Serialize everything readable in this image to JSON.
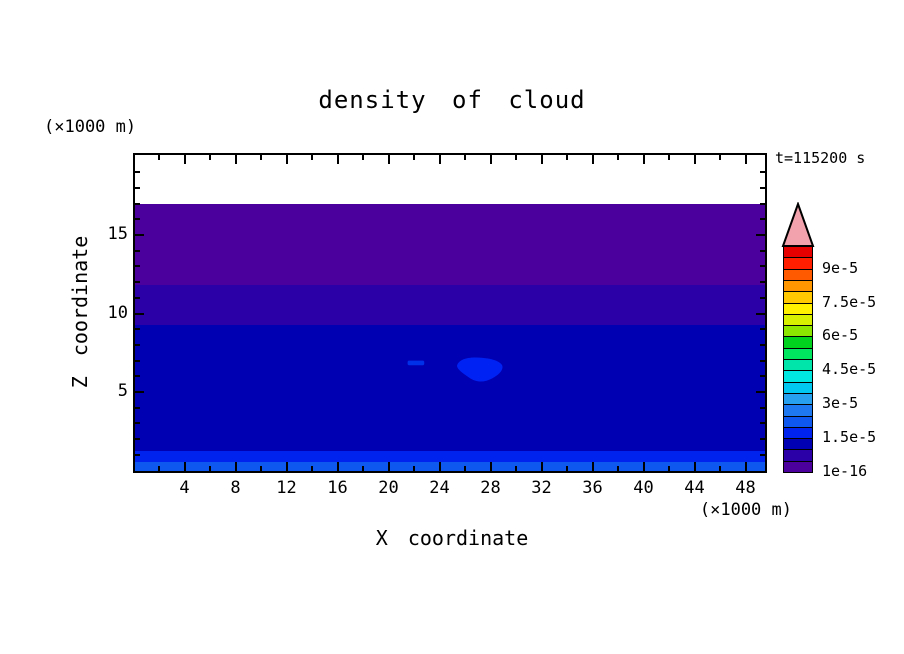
{
  "title": "density of cloud",
  "annotations": {
    "time": "t=115200 s",
    "y_unit": "(×1000 m)",
    "x_unit": "(×1000 m)"
  },
  "axes": {
    "x": {
      "label": "X coordinate",
      "major_ticks": [
        4,
        8,
        12,
        16,
        20,
        24,
        28,
        32,
        36,
        40,
        44,
        48
      ],
      "minor_ticks": [
        2,
        6,
        10,
        14,
        18,
        22,
        26,
        30,
        34,
        38,
        42,
        46
      ]
    },
    "z": {
      "label": "Z coordinate",
      "major_ticks": [
        5,
        10,
        15
      ],
      "minor_ticks": [
        1,
        2,
        3,
        4,
        6,
        7,
        8,
        9,
        11,
        12,
        13,
        14,
        16,
        17,
        18,
        19
      ]
    }
  },
  "colorbar": {
    "arrow_color": "#F2A2AC",
    "cells_bottom_to_top": [
      "#4B009E",
      "#2B00A6",
      "#0000B2",
      "#0024EE",
      "#0E57EF",
      "#1E78F0",
      "#28A0F0",
      "#00C8F0",
      "#00E6E1",
      "#00E6AA",
      "#00E65F",
      "#00D21E",
      "#8CE600",
      "#D7F000",
      "#FFF000",
      "#FFC800",
      "#FF9600",
      "#FF5A00",
      "#FF1E00",
      "#E60000"
    ],
    "labels": [
      {
        "text": "1e-16",
        "boundary_index": 0
      },
      {
        "text": "1.5e-5",
        "boundary_index": 3
      },
      {
        "text": "3e-5",
        "boundary_index": 6
      },
      {
        "text": "4.5e-5",
        "boundary_index": 9
      },
      {
        "text": "6e-5",
        "boundary_index": 12
      },
      {
        "text": "7.5e-5",
        "boundary_index": 15
      },
      {
        "text": "9e-5",
        "boundary_index": 18
      }
    ]
  },
  "chart_data": {
    "type": "heatmap",
    "title": "density of cloud",
    "xlabel": "X coordinate (×1000 m)",
    "ylabel": "Z coordinate (×1000 m)",
    "time_label": "t=115200 s",
    "xlim": [
      0,
      49.5
    ],
    "ylim": [
      0,
      20
    ],
    "level_step": 5e-06,
    "colorbar_tick_labels": [
      "1e-16",
      "1.5e-5",
      "3e-5",
      "4.5e-5",
      "6e-5",
      "7.5e-5",
      "9e-5"
    ],
    "bands": [
      {
        "z_from": 17.0,
        "z_to": 20.1,
        "value_min": 0,
        "value_max": 1e-16,
        "color": "#FFFFFF"
      },
      {
        "z_from": 11.8,
        "z_to": 17.0,
        "value_min": 1e-16,
        "value_max": 5e-06,
        "color": "#4B009E"
      },
      {
        "z_from": 9.25,
        "z_to": 11.8,
        "value_min": 5e-06,
        "value_max": 1e-05,
        "color": "#2B00A6"
      },
      {
        "z_from": 1.25,
        "z_to": 9.25,
        "value_min": 1e-05,
        "value_max": 1.5e-05,
        "color": "#0000B2"
      },
      {
        "z_from": 0.55,
        "z_to": 1.25,
        "value_min": 1.5e-05,
        "value_max": 2e-05,
        "color": "#0024EE"
      },
      {
        "z_from": 0.0,
        "z_to": 0.55,
        "value_min": 2e-05,
        "value_max": 2.5e-05,
        "color": "#0E57EF"
      }
    ],
    "features": [
      {
        "name": "cloud-blob",
        "x_from": 25.3,
        "x_to": 29.0,
        "z_from": 5.6,
        "z_to": 7.3,
        "value_min": 1.5e-05,
        "value_max": 2e-05,
        "color": "#0022F2"
      },
      {
        "name": "cloud-dash",
        "x_from": 21.5,
        "x_to": 22.8,
        "z_from": 6.8,
        "z_to": 7.0,
        "value_min": 1.5e-05,
        "value_max": 2e-05,
        "color": "#0030E8"
      }
    ]
  }
}
